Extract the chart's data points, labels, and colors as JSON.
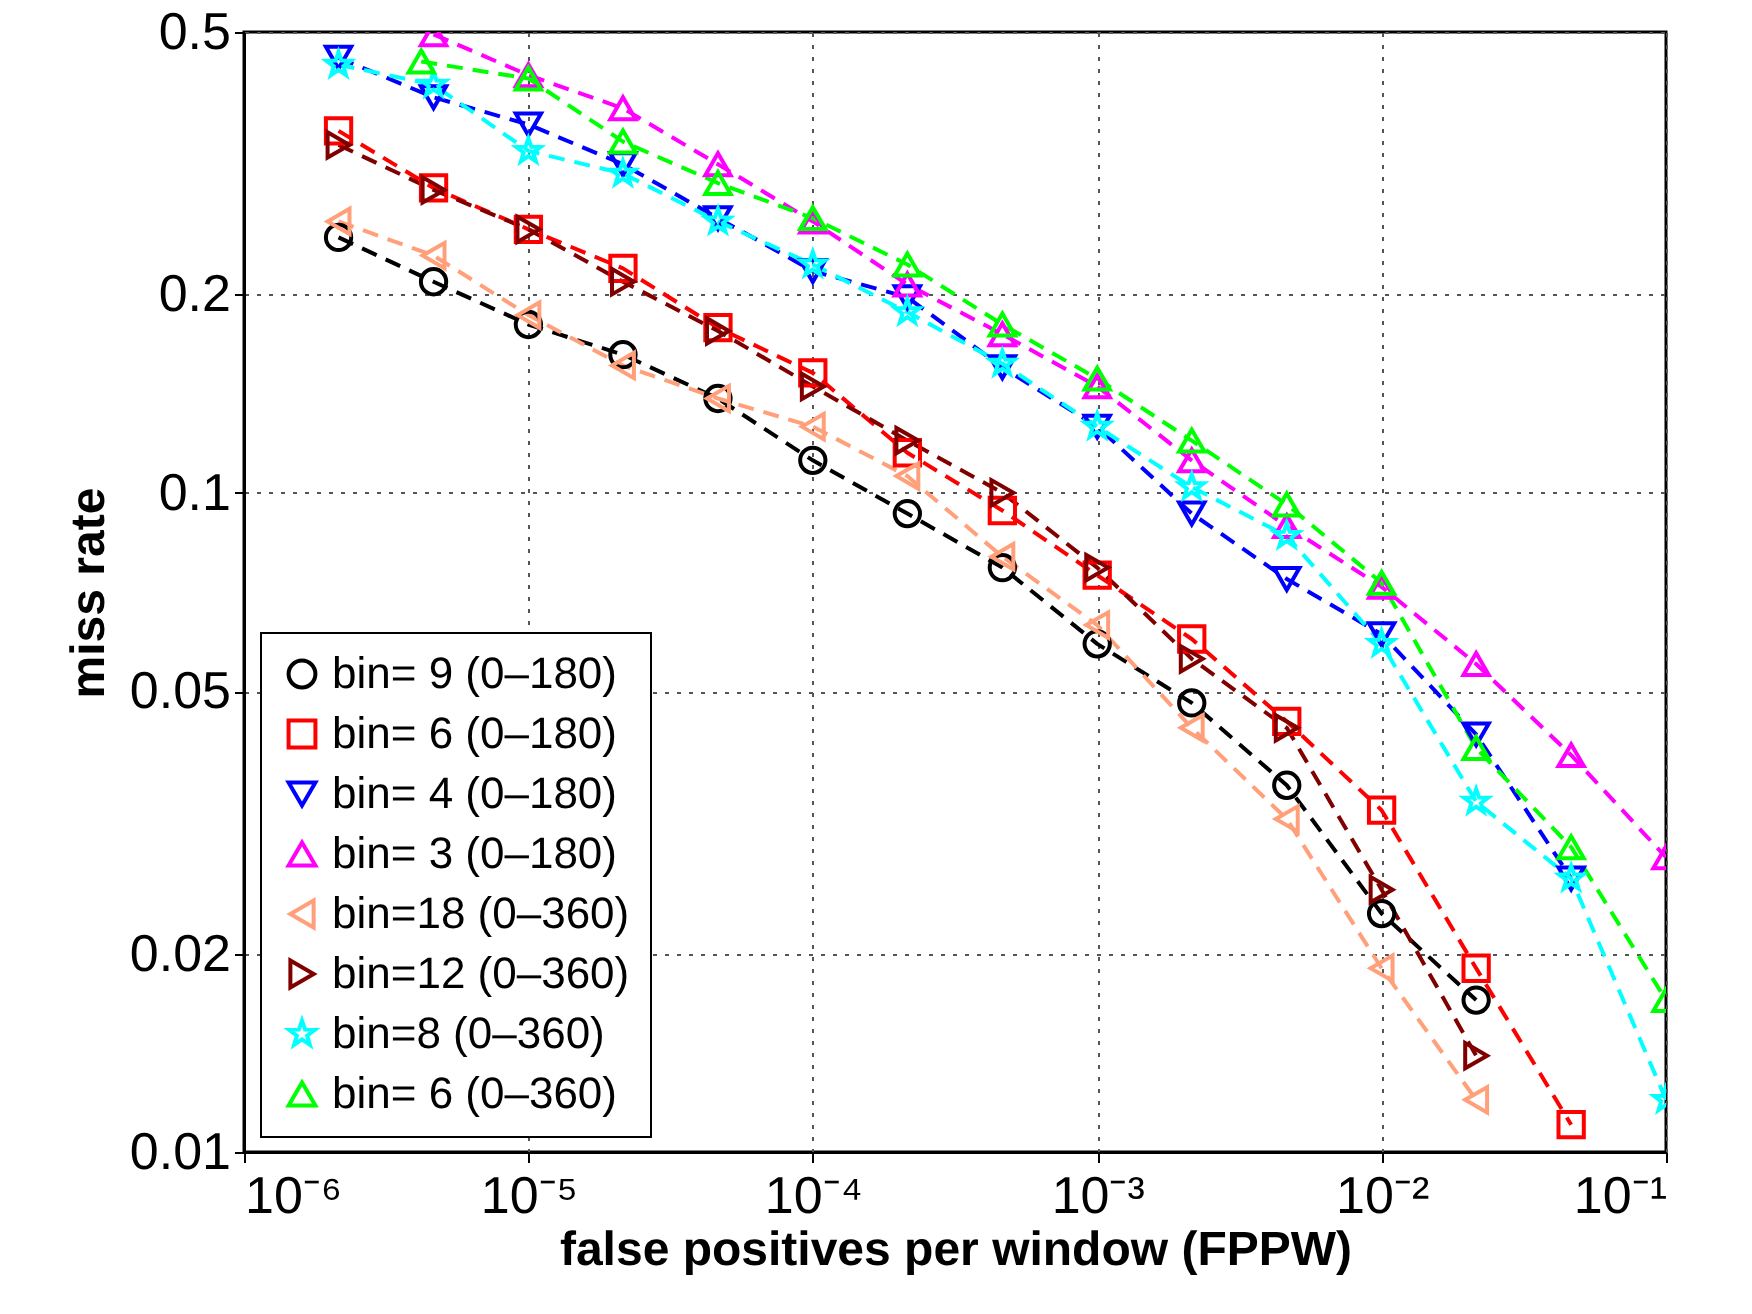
{
  "chart_data": {
    "type": "line",
    "xlabel": "false positives per window (FPPW)",
    "ylabel": "miss rate",
    "log": "xy",
    "grid": true,
    "legend": "bottom left",
    "line_style": "dashed",
    "xlim": [
      1e-06,
      0.1
    ],
    "ylim": [
      0.01,
      0.5
    ],
    "xticks": [
      {
        "value": 1e-06,
        "label": "10⁻⁶"
      },
      {
        "value": 1e-05,
        "label": "10⁻⁵"
      },
      {
        "value": 0.0001,
        "label": "10⁻⁴"
      },
      {
        "value": 0.001,
        "label": "10⁻³"
      },
      {
        "value": 0.01,
        "label": "10⁻²"
      },
      {
        "value": 0.1,
        "label": "10⁻¹"
      }
    ],
    "yticks": [
      0.01,
      0.02,
      0.05,
      0.1,
      0.2,
      0.5
    ],
    "series": [
      {
        "name": "bin=  9 (0–180)",
        "color": "#000000",
        "marker": "circle",
        "x": [
          2.15e-06,
          4.64e-06,
          1e-05,
          2.15e-05,
          4.64e-05,
          0.0001,
          0.000215,
          0.000464,
          0.001,
          0.00215,
          0.00464,
          0.01,
          0.0215
        ],
        "values": [
          0.244,
          0.209,
          0.18,
          0.162,
          0.139,
          0.112,
          0.093,
          0.077,
          0.059,
          0.048,
          0.036,
          0.023,
          0.017
        ]
      },
      {
        "name": "bin=  6 (0–180)",
        "color": "#ff0000",
        "marker": "square",
        "x": [
          2.15e-06,
          4.64e-06,
          1e-05,
          2.15e-05,
          4.64e-05,
          0.0001,
          0.000215,
          0.000464,
          0.001,
          0.00215,
          0.00464,
          0.01,
          0.0215,
          0.0464
        ],
        "values": [
          0.354,
          0.29,
          0.251,
          0.219,
          0.178,
          0.152,
          0.115,
          0.094,
          0.075,
          0.06,
          0.045,
          0.033,
          0.019,
          0.011
        ]
      },
      {
        "name": "bin=  4 (0–180)",
        "color": "#0000ff",
        "marker": "triangle-down",
        "x": [
          2.15e-06,
          4.64e-06,
          1e-05,
          2.15e-05,
          4.64e-05,
          0.0001,
          0.000215,
          0.000464,
          0.001,
          0.00215,
          0.00464,
          0.01,
          0.0215,
          0.0464
        ],
        "values": [
          0.457,
          0.398,
          0.362,
          0.315,
          0.261,
          0.217,
          0.198,
          0.155,
          0.126,
          0.093,
          0.074,
          0.061,
          0.043,
          0.026
        ]
      },
      {
        "name": "bin=  3 (0–180)",
        "color": "#ff00ff",
        "marker": "triangle-up",
        "x": [
          4.64e-06,
          1e-05,
          2.15e-05,
          4.64e-05,
          0.0001,
          0.000215,
          0.000464,
          0.001,
          0.00215,
          0.00464,
          0.01,
          0.0215,
          0.0464,
          0.1
        ],
        "values": [
          0.496,
          0.43,
          0.383,
          0.315,
          0.258,
          0.207,
          0.174,
          0.145,
          0.112,
          0.089,
          0.072,
          0.055,
          0.04,
          0.028
        ]
      },
      {
        "name": "bin=18 (0–360)",
        "color": "#ffa07a",
        "marker": "triangle-left",
        "x": [
          2.15e-06,
          4.64e-06,
          1e-05,
          2.15e-05,
          4.64e-05,
          0.0001,
          0.000215,
          0.000464,
          0.001,
          0.00215,
          0.00464,
          0.01,
          0.0215
        ],
        "values": [
          0.258,
          0.229,
          0.186,
          0.156,
          0.139,
          0.126,
          0.106,
          0.08,
          0.063,
          0.044,
          0.032,
          0.019,
          0.012
        ]
      },
      {
        "name": "bin=12 (0–360)",
        "color": "#800000",
        "marker": "triangle-right",
        "x": [
          2.15e-06,
          4.64e-06,
          1e-05,
          2.15e-05,
          4.64e-05,
          0.0001,
          0.000215,
          0.000464,
          0.001,
          0.00215,
          0.00464,
          0.01,
          0.0215
        ],
        "values": [
          0.337,
          0.288,
          0.251,
          0.209,
          0.176,
          0.145,
          0.12,
          0.1,
          0.077,
          0.056,
          0.044,
          0.025,
          0.014
        ]
      },
      {
        "name": "bin=8 (0–360)",
        "color": "#00ffff",
        "marker": "star",
        "x": [
          2.15e-06,
          4.64e-06,
          1e-05,
          2.15e-05,
          4.64e-05,
          0.0001,
          0.000215,
          0.000464,
          0.001,
          0.00215,
          0.00464,
          0.01,
          0.0215,
          0.0464,
          0.1
        ],
        "values": [
          0.446,
          0.416,
          0.33,
          0.305,
          0.258,
          0.222,
          0.188,
          0.157,
          0.126,
          0.102,
          0.086,
          0.059,
          0.034,
          0.026,
          0.012
        ]
      },
      {
        "name": "bin= 6 (0–360)",
        "color": "#00ff00",
        "marker": "triangle-up",
        "x": [
          4.2e-06,
          1e-05,
          2.15e-05,
          4.64e-05,
          0.0001,
          0.000215,
          0.000464,
          0.001,
          0.00215,
          0.00464,
          0.01,
          0.0215,
          0.0464,
          0.1
        ],
        "values": [
          0.451,
          0.425,
          0.341,
          0.295,
          0.261,
          0.222,
          0.18,
          0.149,
          0.12,
          0.096,
          0.073,
          0.041,
          0.029,
          0.017
        ]
      }
    ]
  }
}
